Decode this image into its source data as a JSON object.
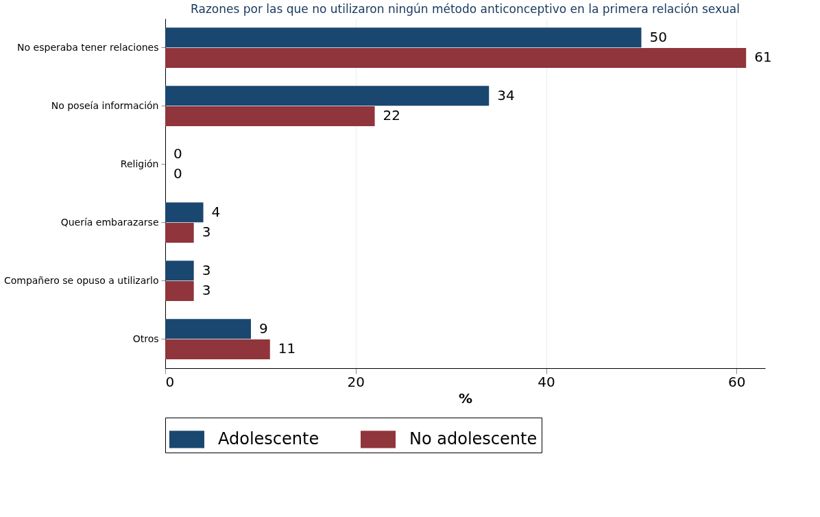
{
  "chart_data": {
    "type": "bar",
    "orientation": "horizontal",
    "title": "Razones por las que no utilizaron ningún método anticonceptivo en la primera relación sexual",
    "xlabel": "%",
    "categories": [
      "No esperaba tener relaciones",
      "No poseía información",
      "Religión",
      "Quería embarazarse",
      "Compañero se opuso a utilizarlo",
      "Otros"
    ],
    "series": [
      {
        "name": "Adolescente",
        "color": "#1a476f",
        "values": [
          50,
          34,
          0,
          4,
          3,
          9
        ]
      },
      {
        "name": "No adolescente",
        "color": "#90353b",
        "values": [
          61,
          22,
          0,
          3,
          3,
          11
        ]
      }
    ],
    "xlim": [
      0,
      63
    ],
    "xticks": [
      0,
      20,
      40,
      60
    ],
    "grid": "x",
    "legend": "bottom",
    "data_labels": true
  }
}
